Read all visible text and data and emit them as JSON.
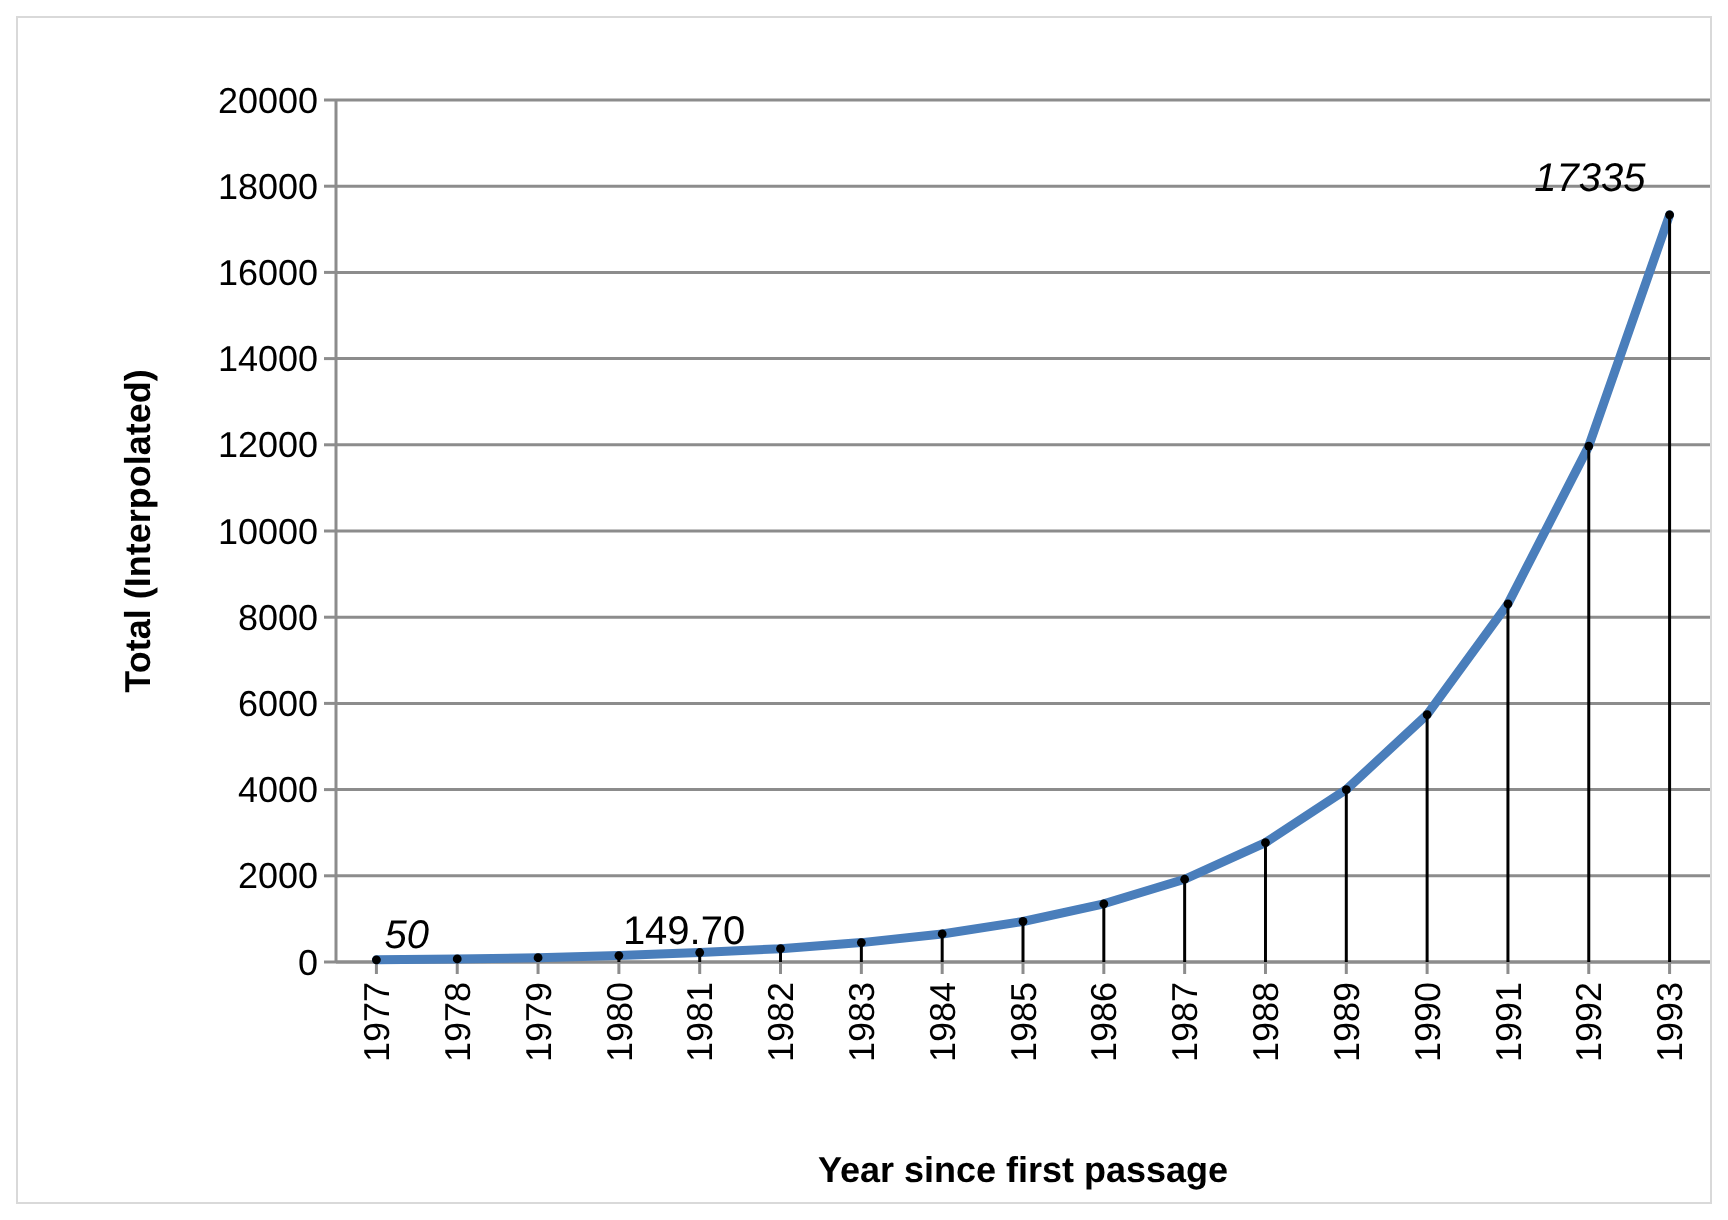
{
  "chart_data": {
    "type": "line",
    "xlabel": "Year since first passage",
    "ylabel": "Total (Interpolated)",
    "categories": [
      "1977",
      "1978",
      "1979",
      "1980",
      "1981",
      "1982",
      "1983",
      "1984",
      "1985",
      "1986",
      "1987",
      "1988",
      "1989",
      "1990",
      "1991",
      "1992",
      "1993"
    ],
    "series": [
      {
        "color": "#4a7ebb",
        "values": [
          50,
          70,
          100,
          149.7,
          220,
          310,
          450,
          650,
          940,
          1350,
          1920,
          2770,
          4000,
          5740,
          8310,
          11970,
          17335
        ]
      },
      {
        "type": "lollipop",
        "marker": "circle",
        "color": "#000000",
        "values": [
          50,
          70,
          100,
          149.7,
          220,
          310,
          450,
          650,
          940,
          1350,
          1920,
          2770,
          4000,
          5740,
          8310,
          11970,
          17335
        ]
      }
    ],
    "ylim": [
      0,
      20000
    ],
    "yticks": [
      0,
      2000,
      4000,
      6000,
      8000,
      10000,
      12000,
      14000,
      16000,
      18000,
      20000
    ],
    "grid": "y",
    "marker": "none",
    "line_style": "solid",
    "annotations": [
      {
        "text": "50",
        "x": "1977",
        "y": 50
      },
      {
        "text": "149.70",
        "x": "1980",
        "y": 149.7
      },
      {
        "text": "17335",
        "x": "1993",
        "y": 17335
      }
    ]
  }
}
